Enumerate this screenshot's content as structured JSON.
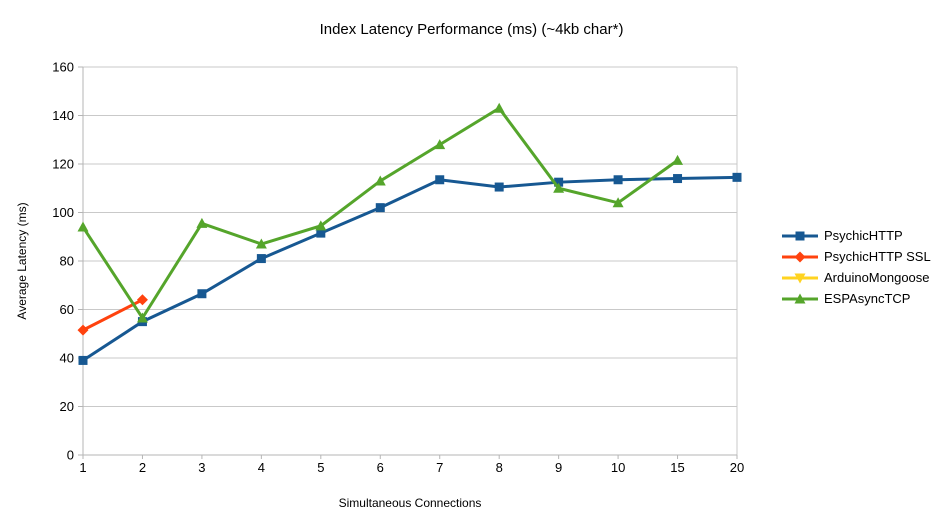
{
  "chart_data": {
    "type": "line",
    "title": "Index Latency Performance (ms) (~4kb char*)",
    "xlabel": "Simultaneous Connections",
    "ylabel": "Average Latency (ms)",
    "categories": [
      "1",
      "2",
      "3",
      "4",
      "5",
      "6",
      "7",
      "8",
      "9",
      "10",
      "15",
      "20"
    ],
    "ylim": [
      0,
      160
    ],
    "yticks": [
      0,
      20,
      40,
      60,
      80,
      100,
      120,
      140,
      160
    ],
    "grid": "horizontal-only",
    "legend_position": "right-middle",
    "colors": {
      "background": "#ffffff",
      "gridline": "#c9c9c9",
      "axis": "#b5b5b5",
      "text": "#000000"
    },
    "series": [
      {
        "name": "PsychicHTTP",
        "color": "#175892",
        "marker": "square",
        "values": [
          39,
          55,
          66.5,
          81,
          91.5,
          102,
          113.5,
          110.5,
          112.5,
          113.5,
          114,
          114.5
        ]
      },
      {
        "name": "PsychicHTTP SSL",
        "color": "#FF420E",
        "marker": "diamond",
        "values": [
          51.5,
          64
        ]
      },
      {
        "name": "ArduinoMongoose",
        "color": "#FFD320",
        "marker": "triangle-down",
        "values": []
      },
      {
        "name": "ESPAsyncTCP",
        "color": "#55A52B",
        "marker": "triangle-up",
        "values": [
          94,
          56.5,
          95.5,
          87,
          94.5,
          113,
          128,
          143,
          110,
          104,
          121.5
        ]
      }
    ]
  }
}
